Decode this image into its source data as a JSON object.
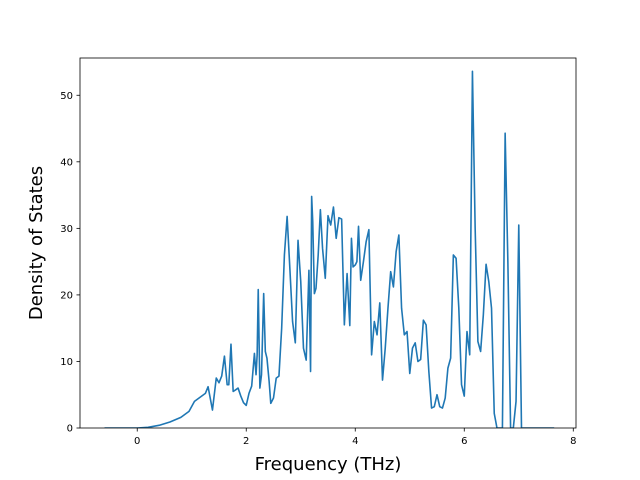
{
  "chart_data": {
    "type": "line",
    "title": "",
    "xlabel": "Frequency (THz)",
    "ylabel": "Density of States",
    "xlim": [
      -1.05,
      8.05
    ],
    "ylim": [
      0,
      55.6
    ],
    "xticks": [
      0,
      2,
      4,
      6,
      8
    ],
    "yticks": [
      0,
      10,
      20,
      30,
      40,
      50
    ],
    "grid": false,
    "color": "#1f77b4",
    "series": [
      {
        "x": [
          -0.6,
          0.0,
          0.2,
          0.4,
          0.6,
          0.8,
          0.95,
          1.05,
          1.15,
          1.25,
          1.3,
          1.38,
          1.45,
          1.5,
          1.55,
          1.6,
          1.65,
          1.68,
          1.72,
          1.76,
          1.8,
          1.85,
          1.9,
          1.95,
          2.0,
          2.05,
          2.1,
          2.15,
          2.18,
          2.2,
          2.22,
          2.25,
          2.28,
          2.32,
          2.35,
          2.38,
          2.42,
          2.45,
          2.5,
          2.55,
          2.6,
          2.65,
          2.7,
          2.75,
          2.8,
          2.85,
          2.9,
          2.95,
          3.0,
          3.05,
          3.1,
          3.15,
          3.18,
          3.2,
          3.22,
          3.25,
          3.28,
          3.32,
          3.36,
          3.4,
          3.45,
          3.5,
          3.55,
          3.6,
          3.65,
          3.7,
          3.75,
          3.8,
          3.85,
          3.9,
          3.93,
          3.96,
          4.0,
          4.03,
          4.06,
          4.1,
          4.15,
          4.2,
          4.25,
          4.3,
          4.35,
          4.4,
          4.45,
          4.5,
          4.55,
          4.6,
          4.65,
          4.7,
          4.75,
          4.8,
          4.85,
          4.9,
          4.95,
          5.0,
          5.05,
          5.1,
          5.15,
          5.2,
          5.25,
          5.3,
          5.35,
          5.4,
          5.45,
          5.5,
          5.55,
          5.6,
          5.65,
          5.7,
          5.75,
          5.8,
          5.85,
          5.9,
          5.95,
          6.0,
          6.05,
          6.1,
          6.15,
          6.2,
          6.25,
          6.3,
          6.35,
          6.4,
          6.45,
          6.5,
          6.55,
          6.6,
          6.65,
          6.7,
          6.75,
          6.8,
          6.85,
          6.9,
          6.95,
          7.0,
          7.05,
          7.5,
          7.65
        ],
        "y": [
          0,
          0,
          0.1,
          0.4,
          0.9,
          1.6,
          2.5,
          4.0,
          4.6,
          5.2,
          6.2,
          2.7,
          7.5,
          6.8,
          7.8,
          10.8,
          6.5,
          6.5,
          12.6,
          5.5,
          5.7,
          6.0,
          4.8,
          3.8,
          3.4,
          5.2,
          6.3,
          11.2,
          8.0,
          11.0,
          20.8,
          6.0,
          8.0,
          20.2,
          11.5,
          10.5,
          7.0,
          3.7,
          4.5,
          7.5,
          7.8,
          15.0,
          26.0,
          31.8,
          24.0,
          16.0,
          12.8,
          28.2,
          22.0,
          12.0,
          10.2,
          23.7,
          8.5,
          34.8,
          31.0,
          20.2,
          21.0,
          26.0,
          32.8,
          27.0,
          22.5,
          31.9,
          30.5,
          33.2,
          28.5,
          31.6,
          31.4,
          15.5,
          23.2,
          15.4,
          28.5,
          24.2,
          24.5,
          25.0,
          30.3,
          22.2,
          25.0,
          28.0,
          29.8,
          11.0,
          16.0,
          14.0,
          18.8,
          7.2,
          12.0,
          18.0,
          23.5,
          21.2,
          26.5,
          29.0,
          18.0,
          14.0,
          14.5,
          8.2,
          12.0,
          12.8,
          10.0,
          10.3,
          16.2,
          15.5,
          8.5,
          3.0,
          3.2,
          5.0,
          3.2,
          3.0,
          4.5,
          9.0,
          10.5,
          26.0,
          25.5,
          18.0,
          6.5,
          4.8,
          14.5,
          11.0,
          53.6,
          30.0,
          13.0,
          11.5,
          17.0,
          24.6,
          22.0,
          18.0,
          2.2,
          0,
          0,
          0,
          44.3,
          25.0,
          0,
          0,
          4.0,
          30.5,
          0,
          0,
          0
        ]
      }
    ]
  }
}
